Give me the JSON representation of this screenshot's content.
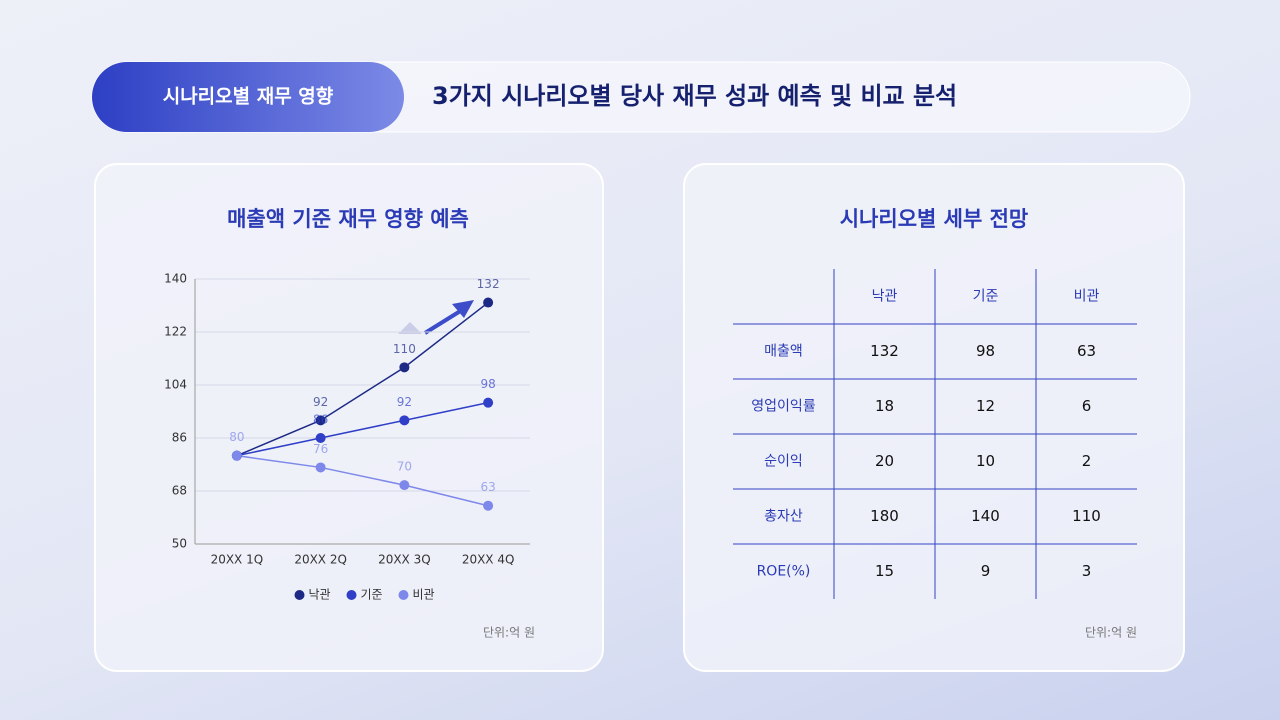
{
  "header": {
    "badge": "시나리오별 재무 영향",
    "title": "3가지 시나리오별 당사 재무 성과 예측 및 비교 분석"
  },
  "chart_data": {
    "type": "line",
    "title": "매출액 기준 재무 영향 예측",
    "categories": [
      "20XX 1Q",
      "20XX 2Q",
      "20XX 3Q",
      "20XX 4Q"
    ],
    "series": [
      {
        "name": "낙관",
        "color": "#1c2a85",
        "values": [
          80,
          92,
          110,
          132
        ]
      },
      {
        "name": "기준",
        "color": "#2f3fc8",
        "values": [
          80,
          86,
          92,
          98
        ]
      },
      {
        "name": "비관",
        "color": "#7d88ea",
        "values": [
          80,
          76,
          70,
          63
        ]
      }
    ],
    "ylim": [
      50,
      140
    ],
    "yticks": [
      50,
      68,
      86,
      104,
      122,
      140
    ],
    "grid": true,
    "note": "단위:억 원"
  },
  "table": {
    "title": "시나리오별 세부 전망",
    "columns": [
      "낙관",
      "기준",
      "비관"
    ],
    "rows": [
      {
        "label": "매출액",
        "values": [
          132,
          98,
          63
        ]
      },
      {
        "label": "영업이익률",
        "values": [
          18,
          12,
          6
        ]
      },
      {
        "label": "순이익",
        "values": [
          20,
          10,
          2
        ]
      },
      {
        "label": "총자산",
        "values": [
          180,
          140,
          110
        ]
      },
      {
        "label": "ROE(%)",
        "values": [
          15,
          9,
          3
        ]
      }
    ],
    "note": "단위:억 원"
  }
}
